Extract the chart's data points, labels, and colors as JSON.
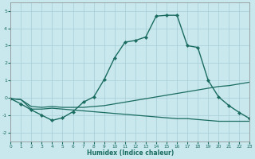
{
  "xlabel": "Humidex (Indice chaleur)",
  "background_color": "#c8e8ee",
  "grid_color": "#a8cdd5",
  "line_color": "#1a6b60",
  "xlim": [
    0,
    23
  ],
  "ylim": [
    -2.5,
    5.5
  ],
  "yticks": [
    -2,
    -1,
    0,
    1,
    2,
    3,
    4,
    5
  ],
  "xticks": [
    0,
    1,
    2,
    3,
    4,
    5,
    6,
    7,
    8,
    9,
    10,
    11,
    12,
    13,
    14,
    15,
    16,
    17,
    18,
    19,
    20,
    21,
    22,
    23
  ],
  "line1_x": [
    0,
    1,
    2,
    3,
    4,
    5,
    6,
    7,
    8,
    9,
    10,
    11,
    12,
    13,
    14,
    15,
    16,
    17,
    18,
    19,
    20,
    21,
    22,
    23
  ],
  "line1_y": [
    -0.05,
    -0.35,
    -0.7,
    -1.0,
    -1.3,
    -1.15,
    -0.8,
    -0.25,
    0.05,
    1.05,
    2.3,
    3.2,
    3.3,
    3.5,
    4.7,
    4.75,
    4.75,
    3.0,
    2.9,
    1.0,
    0.05,
    -0.45,
    -0.85,
    -1.2
  ],
  "line2_x": [
    0,
    1,
    2,
    3,
    4,
    5,
    6,
    7,
    8,
    9,
    10,
    11,
    12,
    13,
    14,
    15,
    16,
    17,
    18,
    19,
    20,
    21,
    22,
    23
  ],
  "line2_y": [
    -0.05,
    -0.1,
    -0.5,
    -0.55,
    -0.5,
    -0.55,
    -0.55,
    -0.55,
    -0.5,
    -0.45,
    -0.35,
    -0.25,
    -0.15,
    -0.05,
    0.05,
    0.15,
    0.25,
    0.35,
    0.45,
    0.55,
    0.65,
    0.7,
    0.8,
    0.9
  ],
  "line3_x": [
    0,
    1,
    2,
    3,
    4,
    5,
    6,
    7,
    8,
    9,
    10,
    11,
    12,
    13,
    14,
    15,
    16,
    17,
    18,
    19,
    20,
    21,
    22,
    23
  ],
  "line3_y": [
    -0.05,
    -0.1,
    -0.65,
    -0.65,
    -0.6,
    -0.65,
    -0.7,
    -0.75,
    -0.8,
    -0.85,
    -0.9,
    -0.95,
    -1.0,
    -1.05,
    -1.1,
    -1.15,
    -1.2,
    -1.2,
    -1.25,
    -1.3,
    -1.35,
    -1.35,
    -1.35,
    -1.35
  ]
}
